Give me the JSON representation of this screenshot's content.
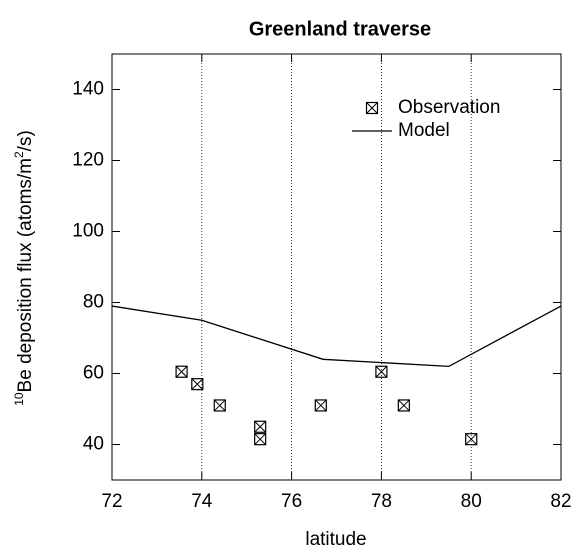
{
  "chart_data": {
    "type": "scatter-line",
    "title": "Greenland traverse",
    "xlabel": "latitude",
    "ylabel": [
      "10",
      "Be deposition flux (atoms/m",
      "2",
      "/s)"
    ],
    "xlim": [
      72,
      82
    ],
    "xticks": [
      72,
      74,
      76,
      78,
      80,
      82
    ],
    "ylim": [
      30,
      150
    ],
    "yticks": [
      40,
      60,
      80,
      100,
      120,
      140
    ],
    "grid": true,
    "legend": "upper right",
    "series": [
      {
        "name": "Observation",
        "kind": "scatter",
        "color": "#000000",
        "x": [
          73.55,
          73.9,
          74.4,
          75.3,
          75.3,
          76.65,
          78,
          78.5,
          80
        ],
        "values": [
          60.5,
          57,
          51,
          45,
          41.5,
          51,
          60.5,
          51,
          41.5
        ]
      },
      {
        "name": "Model",
        "kind": "line",
        "color": "#000000",
        "x": [
          72,
          74,
          76.7,
          79.5,
          82
        ],
        "values": [
          79,
          75,
          64,
          62,
          79
        ]
      }
    ]
  }
}
